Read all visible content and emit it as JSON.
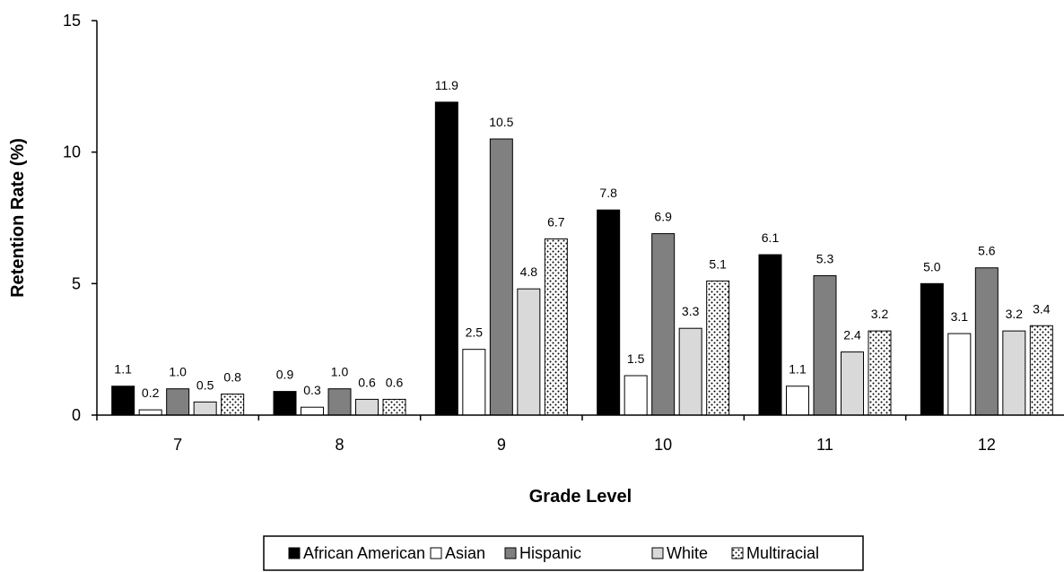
{
  "chart_data": {
    "type": "bar",
    "title": "",
    "xlabel": "Grade Level",
    "ylabel": "Retention Rate (%)",
    "ylim": [
      0,
      15
    ],
    "yticks": [
      "0",
      "5",
      "10",
      "15"
    ],
    "categories": [
      "7",
      "8",
      "9",
      "10",
      "11",
      "12"
    ],
    "series": [
      {
        "name": "African American",
        "values": [
          1.1,
          0.9,
          11.9,
          7.8,
          6.1,
          5.0
        ],
        "labels": [
          "1.1",
          "0.9",
          "11.9",
          "7.8",
          "6.1",
          "5.0"
        ],
        "fill": "#000000",
        "pattern": "solid"
      },
      {
        "name": "Asian",
        "values": [
          0.2,
          0.3,
          2.5,
          1.5,
          1.1,
          3.1
        ],
        "labels": [
          "0.2",
          "0.3",
          "2.5",
          "1.5",
          "1.1",
          "3.1"
        ],
        "fill": "#ffffff",
        "pattern": "solid"
      },
      {
        "name": "Hispanic",
        "values": [
          1.0,
          1.0,
          10.5,
          6.9,
          5.3,
          5.6
        ],
        "labels": [
          "1.0",
          "1.0",
          "10.5",
          "6.9",
          "5.3",
          "5.6"
        ],
        "fill": "#808080",
        "pattern": "solid"
      },
      {
        "name": "White",
        "values": [
          0.5,
          0.6,
          4.8,
          3.3,
          2.4,
          3.2
        ],
        "labels": [
          "0.5",
          "0.6",
          "4.8",
          "3.3",
          "2.4",
          "3.2"
        ],
        "fill": "#d9d9d9",
        "pattern": "solid"
      },
      {
        "name": "Multiracial",
        "values": [
          0.8,
          0.6,
          6.7,
          5.1,
          3.2,
          3.4
        ],
        "labels": [
          "0.8",
          "0.6",
          "6.7",
          "5.1",
          "3.2",
          "3.4"
        ],
        "fill": "#ffffff",
        "pattern": "dots"
      }
    ],
    "legend_position": "bottom",
    "grid": false
  }
}
